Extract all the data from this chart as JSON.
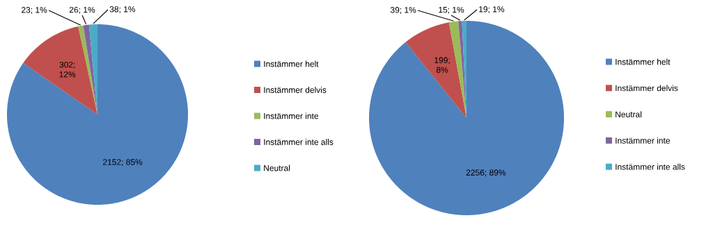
{
  "chart_data": [
    {
      "type": "pie",
      "categories": [
        "Instämmer helt",
        "Instämmer delvis",
        "Instämmer inte",
        "Instämmer inte alls",
        "Neutral"
      ],
      "values": [
        2152,
        302,
        23,
        26,
        38
      ],
      "colors": [
        "#4f81bd",
        "#c0504d",
        "#9bbb59",
        "#8064a2",
        "#4bacc6"
      ],
      "value_labels": [
        "2152; 85%",
        "302; 12%",
        "23; 1%",
        "26; 1%",
        "38; 1%"
      ],
      "legend": "right"
    },
    {
      "type": "pie",
      "categories": [
        "Instämmer helt",
        "Instämmer delvis",
        "Neutral",
        "Instämmer inte",
        "Instämmer inte alls"
      ],
      "values": [
        2256,
        199,
        39,
        15,
        19
      ],
      "colors": [
        "#4f81bd",
        "#c0504d",
        "#9bbb59",
        "#8064a2",
        "#4bacc6"
      ],
      "value_labels": [
        "2256; 89%",
        "199; 8%",
        "39; 1%",
        "15; 1%",
        "19; 1%"
      ],
      "legend": "right"
    }
  ]
}
